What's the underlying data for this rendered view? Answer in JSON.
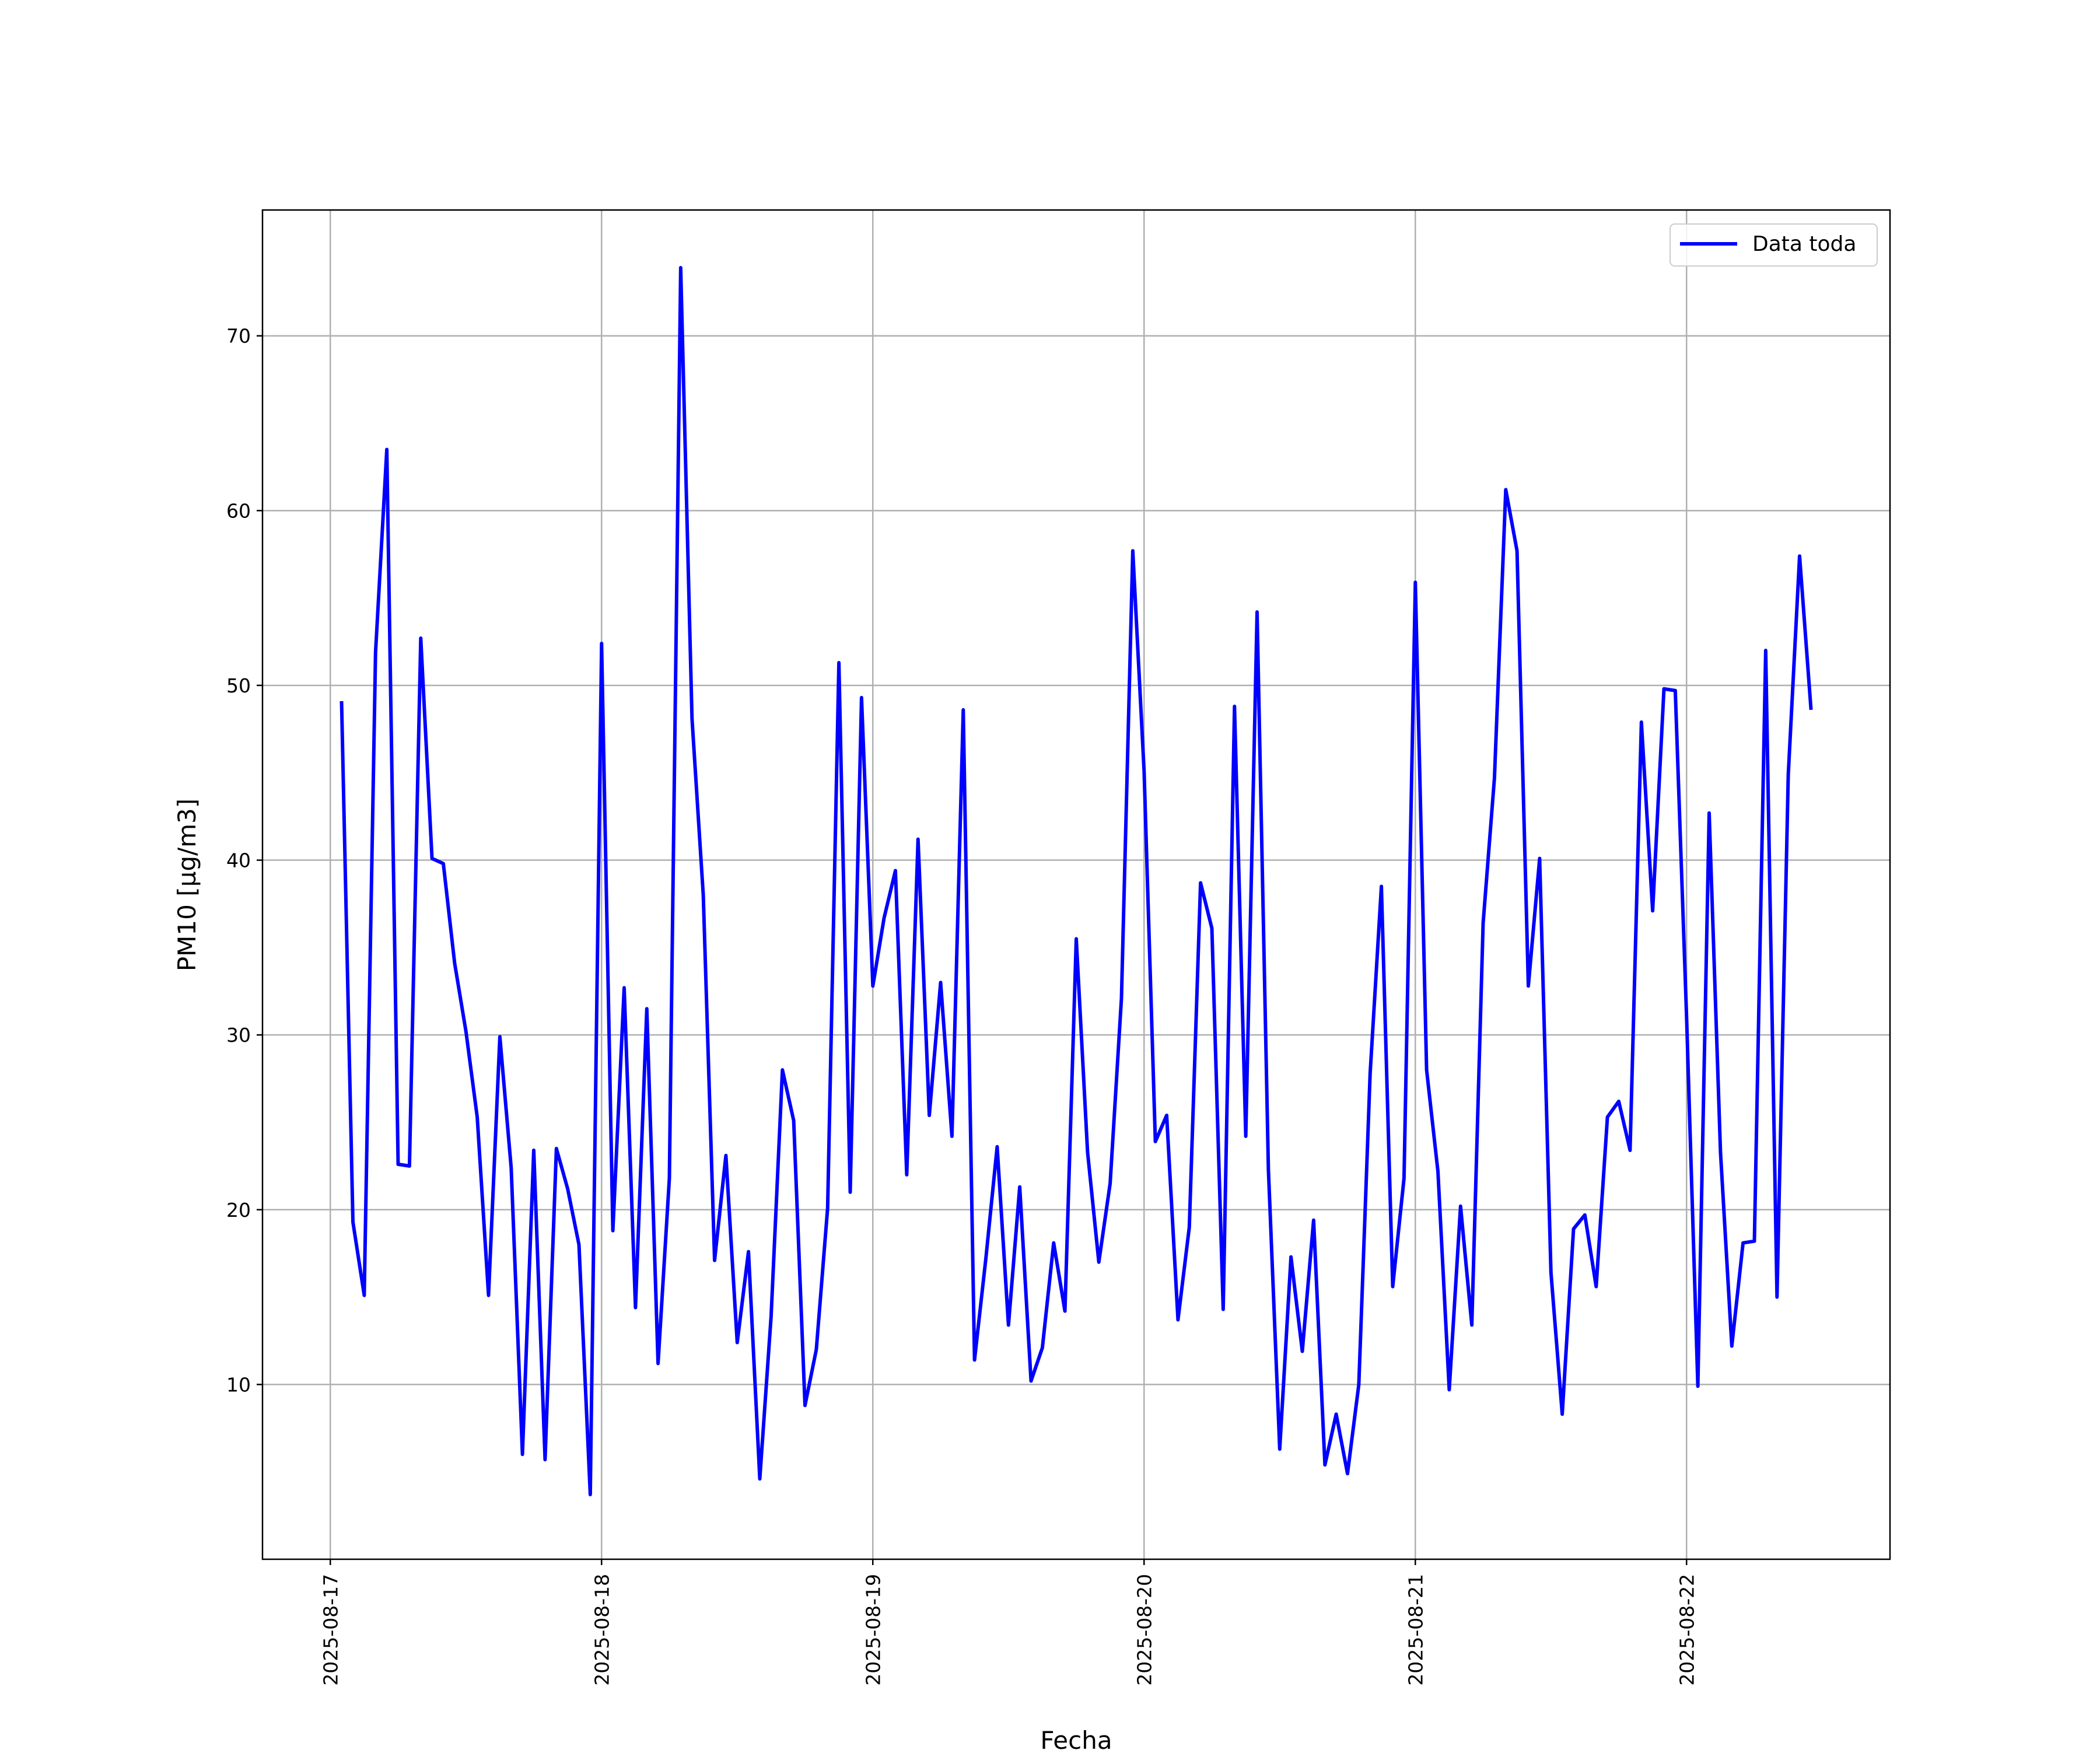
{
  "chart_data": {
    "type": "line",
    "title": "",
    "xlabel": "Fecha",
    "ylabel": "PM10 [μg/m3]",
    "x_ticks": [
      "2025-08-17",
      "2025-08-18",
      "2025-08-19",
      "2025-08-20",
      "2025-08-21",
      "2025-08-22"
    ],
    "y_ticks": [
      10,
      20,
      30,
      40,
      50,
      60,
      70
    ],
    "xlim": [
      "2025-08-16 18:00",
      "2025-08-22 18:00"
    ],
    "ylim": [
      0,
      77.2
    ],
    "grid": true,
    "legend_position": "upper right",
    "x_interval_hours": 1,
    "x_start": "2025-08-17 01:00",
    "series": [
      {
        "name": "Data toda",
        "color": "#0000ff",
        "values": [
          49.0,
          19.3,
          15.1,
          51.9,
          63.5,
          22.6,
          22.5,
          52.7,
          40.1,
          39.8,
          34.1,
          30.2,
          25.3,
          15.1,
          29.9,
          22.4,
          6.0,
          23.4,
          5.7,
          23.5,
          21.2,
          18.0,
          3.7,
          52.4,
          18.8,
          32.7,
          14.4,
          31.5,
          11.2,
          21.8,
          73.9,
          48.1,
          38.0,
          17.1,
          23.1,
          12.4,
          17.6,
          4.6,
          13.9,
          28.0,
          25.1,
          8.8,
          12.0,
          20.1,
          51.3,
          21.0,
          49.3,
          32.8,
          36.7,
          39.4,
          22.0,
          41.2,
          25.4,
          33.0,
          24.2,
          48.6,
          11.4,
          17.2,
          23.6,
          13.4,
          21.3,
          10.2,
          12.1,
          18.1,
          14.2,
          35.5,
          23.3,
          17.0,
          21.5,
          32.1,
          57.7,
          45.1,
          23.9,
          25.4,
          13.7,
          19.0,
          38.7,
          36.1,
          14.3,
          48.8,
          24.2,
          54.2,
          22.3,
          6.3,
          17.3,
          11.9,
          19.4,
          5.4,
          8.3,
          4.9,
          10.0,
          27.8,
          38.5,
          15.6,
          21.8,
          55.9,
          28.0,
          22.2,
          9.7,
          20.2,
          13.4,
          36.4,
          44.7,
          61.2,
          57.7,
          32.8,
          40.1,
          16.4,
          8.3,
          18.9,
          19.7,
          15.6,
          25.3,
          26.2,
          23.4,
          47.9,
          37.1,
          49.8,
          49.7,
          31.0,
          9.9,
          42.7,
          23.3,
          12.2,
          18.1,
          18.2,
          52.0,
          15.0,
          44.9,
          57.4,
          48.7
        ]
      }
    ]
  }
}
